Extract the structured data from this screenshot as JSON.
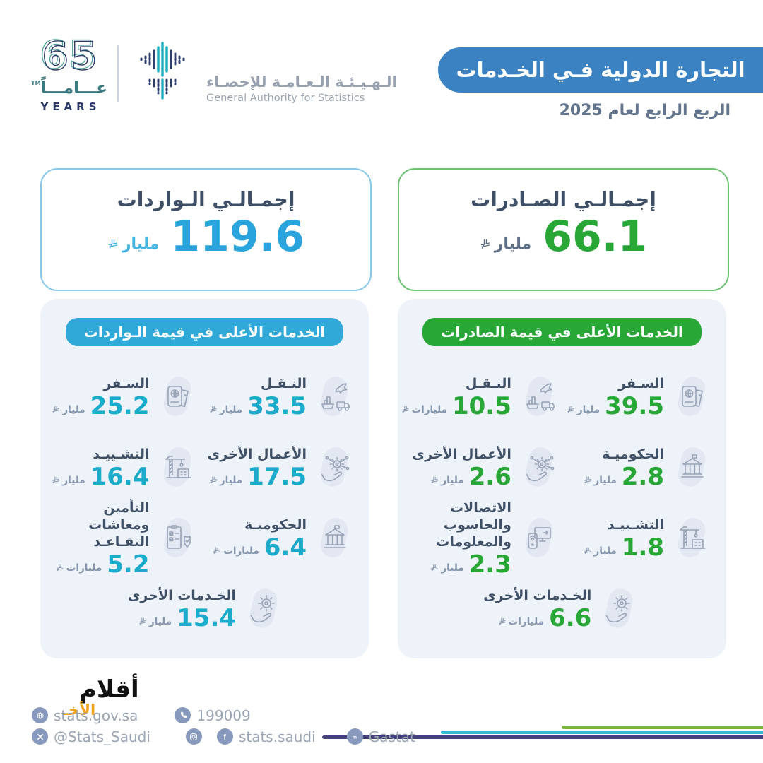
{
  "brand": {
    "anniversary_number": "65",
    "anniversary_ar": "عـــامـــاً",
    "anniversary_en": "YEARS",
    "authority_name_ar": "الـهـيـئـة الـعـامـة للإحصـاء",
    "authority_name_en": "General Authority for Statistics"
  },
  "header": {
    "title": "التجارة الدولية فـي الخـدمات",
    "subtitle": "الربع الرابع لعام 2025"
  },
  "summary": {
    "imports": {
      "title": "إجمـالـي الـواردات",
      "value": "119.6",
      "unit": "مليار",
      "accent": "#29A4DC",
      "border": "#8AC8E8"
    },
    "exports": {
      "title": "إجمـالـي الصـادرات",
      "value": "66.1",
      "unit": "مليار",
      "accent": "#28A737",
      "border": "#6EC273"
    }
  },
  "panels": {
    "imports": {
      "header": "الخدمات الأعلى في قيمة الـواردات",
      "accent": "#1CABCB",
      "items": [
        {
          "label": "النـقـل",
          "value": "33.5",
          "unit": "مليار",
          "icon": "transport"
        },
        {
          "label": "السـفر",
          "value": "25.2",
          "unit": "مليار",
          "icon": "travel"
        },
        {
          "label": "الأعمال الأخرى",
          "value": "17.5",
          "unit": "مليار",
          "icon": "business"
        },
        {
          "label": "التشـييـد",
          "value": "16.4",
          "unit": "مليار",
          "icon": "construction"
        },
        {
          "label": "الحكوميـة",
          "value": "6.4",
          "unit": "مليارات",
          "icon": "government"
        },
        {
          "label": "التأمين ومعاشات التقـاعـد",
          "value": "5.2",
          "unit": "مليارات",
          "icon": "insurance"
        },
        {
          "label": "الخـدمات الأخرى",
          "value": "15.4",
          "unit": "مليار",
          "icon": "services"
        }
      ]
    },
    "exports": {
      "header": "الخدمات الأعلى في قيمة الصادرات",
      "accent": "#28A737",
      "items": [
        {
          "label": "السـفر",
          "value": "39.5",
          "unit": "مليار",
          "icon": "travel"
        },
        {
          "label": "النـقـل",
          "value": "10.5",
          "unit": "مليارات",
          "icon": "transport"
        },
        {
          "label": "الحكوميـة",
          "value": "2.8",
          "unit": "مليار",
          "icon": "government"
        },
        {
          "label": "الأعمال الأخرى",
          "value": "2.6",
          "unit": "مليار",
          "icon": "business"
        },
        {
          "label": "التشـييـد",
          "value": "1.8",
          "unit": "مليار",
          "icon": "construction"
        },
        {
          "label": "الاتصالات والحاسوب والمعلومات",
          "value": "2.3",
          "unit": "مليار",
          "icon": "telecom"
        },
        {
          "label": "الخـدمات الأخرى",
          "value": "6.6",
          "unit": "مليارات",
          "icon": "services"
        }
      ]
    }
  },
  "footer": {
    "website": "stats.gov.sa",
    "phone": "199009",
    "x_handle": "@Stats_Saudi",
    "social_handle": "stats.saudi",
    "linkedin_handle": "Gastat",
    "watermark": "أقلام",
    "watermark_sub": "الأخـ"
  },
  "colors": {
    "banner_blue": "#3B82C3",
    "imports_accent": "#29A4DC",
    "exports_accent": "#28A737",
    "panel_bg": "#EEF2F9",
    "label_slate": "#3F5066",
    "footer_gray": "#9AA5B4",
    "line_green": "#7DB343",
    "line_cyan": "#38B7D0",
    "line_purple": "#443F7E"
  }
}
